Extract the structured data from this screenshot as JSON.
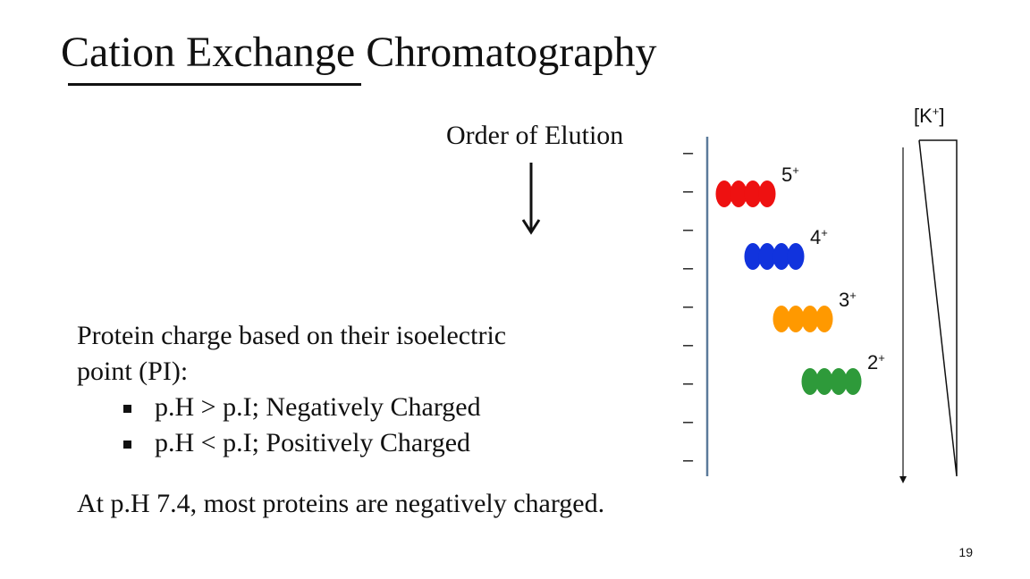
{
  "slide": {
    "title": "Cation Exchange Chromatography",
    "elution_label": "Order of Elution",
    "body_line1": "Protein charge based on their isoelectric",
    "body_line2": "point (PI):",
    "bullets": [
      "p.H > p.I; Negatively Charged",
      "p.H < p.I; Positively Charged"
    ],
    "footer": "At p.H 7.4, most proteins are negatively charged.",
    "page_number": "19"
  },
  "diagram": {
    "gradient_label_base": "[K",
    "gradient_label_sup": "+",
    "gradient_label_close": "]",
    "column_charge_symbol": "–",
    "column_charge_count": 9,
    "proteins": [
      {
        "charge": "5",
        "sup": "+",
        "color": "#ee1111"
      },
      {
        "charge": "4",
        "sup": "+",
        "color": "#1133dd"
      },
      {
        "charge": "3",
        "sup": "+",
        "color": "#ff9900"
      },
      {
        "charge": "2",
        "sup": "+",
        "color": "#2e9a3a"
      }
    ]
  },
  "colors": {
    "column_line": "#5b7a9a",
    "text": "#111111"
  }
}
